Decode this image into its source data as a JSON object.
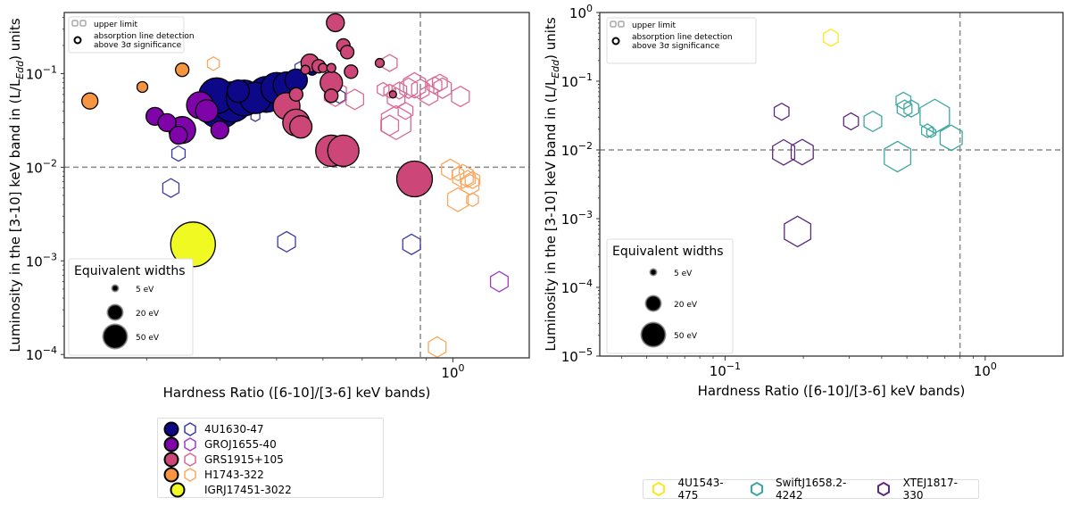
{
  "chart_data": [
    {
      "type": "scatter",
      "panel": "left",
      "xlabel": "Hardness Ratio ([6-10]/[3-6] keV bands)",
      "ylabel": "Luminosity in the [3-10] keV band in (L/L_Edd) units",
      "xscale": "log",
      "yscale": "log",
      "xlim": [
        0.217,
        1.35
      ],
      "ylim": [
        9.2e-05,
        0.45
      ],
      "x_ticks": [
        {
          "value": 1,
          "label": "10^0"
        }
      ],
      "y_ticks": [
        {
          "value": 0.1,
          "label": "10^-1"
        },
        {
          "value": 0.01,
          "label": "10^-2"
        },
        {
          "value": 0.001,
          "label": "10^-3"
        },
        {
          "value": 0.0001,
          "label": "10^-4"
        }
      ],
      "reference_lines": {
        "hardness": 0.88,
        "luminosity": 0.01
      },
      "marker_legend": {
        "upper_limit": "upper limit",
        "detection": "absorption line detection\n above 3σ significance"
      },
      "ew_legend": {
        "title": "Equivalent widths",
        "entries": [
          "5 eV",
          "20 eV",
          "50 eV"
        ]
      },
      "series": [
        {
          "name": "4U1630-47",
          "color": "#0d0887",
          "detections": [
            [
              0.395,
              0.058,
              40
            ],
            [
              0.42,
              0.05,
              45
            ],
            [
              0.44,
              0.055,
              40
            ],
            [
              0.4,
              0.045,
              50
            ],
            [
              0.46,
              0.055,
              35
            ],
            [
              0.48,
              0.06,
              40
            ],
            [
              0.5,
              0.07,
              35
            ],
            [
              0.52,
              0.075,
              30
            ],
            [
              0.54,
              0.085,
              25
            ],
            [
              0.43,
              0.065,
              25
            ],
            [
              0.575,
              0.11,
              12
            ]
          ],
          "upper_limits": [
            [
              0.55,
              0.115,
              8
            ],
            [
              0.64,
              0.057,
              8
            ],
            [
              0.46,
              0.035,
              6
            ],
            [
              0.34,
              0.014,
              9
            ],
            [
              0.33,
              0.006,
              11
            ],
            [
              0.52,
              0.0016,
              12
            ],
            [
              0.85,
              0.0015,
              12
            ]
          ]
        },
        {
          "name": "GROJ1655-40",
          "color": "#7e03a8",
          "detections": [
            [
              0.31,
              0.035,
              20
            ],
            [
              0.325,
              0.03,
              20
            ],
            [
              0.345,
              0.025,
              30
            ],
            [
              0.34,
              0.022,
              20
            ],
            [
              0.37,
              0.046,
              30
            ],
            [
              0.38,
              0.04,
              25
            ],
            [
              0.4,
              0.025,
              20
            ]
          ],
          "upper_limits": [
            [
              1.2,
              0.0006,
              12
            ]
          ]
        },
        {
          "name": "GRS1915+105",
          "color": "#cc4778",
          "detections": [
            [
              0.63,
              0.35,
              20
            ],
            [
              0.65,
              0.2,
              15
            ],
            [
              0.66,
              0.17,
              15
            ],
            [
              0.57,
              0.13,
              20
            ],
            [
              0.59,
              0.12,
              15
            ],
            [
              0.6,
              0.115,
              10
            ],
            [
              0.62,
              0.115,
              10
            ],
            [
              0.56,
              0.11,
              10
            ],
            [
              0.67,
              0.105,
              15
            ],
            [
              0.75,
              0.13,
              10
            ],
            [
              0.54,
              0.06,
              15
            ],
            [
              0.62,
              0.08,
              25
            ],
            [
              0.52,
              0.045,
              30
            ],
            [
              0.54,
              0.03,
              30
            ],
            [
              0.55,
              0.027,
              25
            ],
            [
              0.62,
              0.015,
              35
            ],
            [
              0.65,
              0.015,
              35
            ],
            [
              0.86,
              0.0075,
              40
            ],
            [
              0.62,
              0.058,
              15
            ],
            [
              0.79,
              0.06,
              8
            ]
          ],
          "upper_limits": [
            [
              0.63,
              0.061,
              15
            ],
            [
              0.68,
              0.053,
              12
            ],
            [
              0.78,
              0.13,
              10
            ],
            [
              0.76,
              0.068,
              8
            ],
            [
              0.78,
              0.065,
              8
            ],
            [
              0.81,
              0.066,
              10
            ],
            [
              0.84,
              0.07,
              12
            ],
            [
              0.86,
              0.075,
              15
            ],
            [
              0.88,
              0.068,
              12
            ],
            [
              0.91,
              0.059,
              12
            ],
            [
              0.8,
              0.055,
              12
            ],
            [
              0.83,
              0.04,
              10
            ],
            [
              0.78,
              0.028,
              12
            ],
            [
              0.8,
              0.03,
              20
            ],
            [
              0.95,
              0.08,
              10
            ],
            [
              0.96,
              0.07,
              12
            ],
            [
              0.93,
              0.075,
              10
            ],
            [
              1.03,
              0.057,
              12
            ]
          ]
        },
        {
          "name": "H1743-322",
          "color": "#f89540",
          "detections": [
            [
              0.24,
              0.051,
              18
            ],
            [
              0.295,
              0.072,
              12
            ],
            [
              0.345,
              0.11,
              15
            ]
          ],
          "upper_limits": [
            [
              0.39,
              0.128,
              8
            ],
            [
              0.99,
              0.0095,
              12
            ],
            [
              1.02,
              0.0085,
              8
            ],
            [
              1.04,
              0.008,
              14
            ],
            [
              1.06,
              0.0075,
              10
            ],
            [
              1.08,
              0.0073,
              10
            ],
            [
              1.07,
              0.0065,
              12
            ],
            [
              1.02,
              0.0045,
              14
            ],
            [
              1.08,
              0.0045,
              8
            ],
            [
              0.94,
              0.00012,
              12
            ]
          ]
        },
        {
          "name": "IGRJ17451-3022",
          "color": "#f0f921",
          "detections": [
            [
              0.36,
              0.0015,
              50
            ]
          ],
          "upper_limits": []
        }
      ],
      "legend": {
        "placement": "below",
        "entries": [
          "4U1630-47",
          "GROJ1655-40",
          "GRS1915+105",
          "H1743-322",
          "IGRJ17451-3022"
        ]
      }
    },
    {
      "type": "scatter",
      "panel": "right",
      "xlabel": "Hardness Ratio ([6-10]/[3-6] keV bands)",
      "ylabel": "Luminosity in the [3-10] keV band in (L/L_Edd) units",
      "xscale": "log",
      "yscale": "log",
      "xlim": [
        0.033,
        1.99
      ],
      "ylim": [
        1e-05,
        1
      ],
      "x_ticks": [
        {
          "value": 0.1,
          "label": "10^-1"
        },
        {
          "value": 1,
          "label": "10^0"
        }
      ],
      "y_ticks": [
        {
          "value": 1,
          "label": "10^0"
        },
        {
          "value": 0.1,
          "label": "10^-1"
        },
        {
          "value": 0.01,
          "label": "10^-2"
        },
        {
          "value": 0.001,
          "label": "10^-3"
        },
        {
          "value": 0.0001,
          "label": "10^-4"
        },
        {
          "value": 1e-05,
          "label": "10^-5"
        }
      ],
      "reference_lines": {
        "hardness": 0.8,
        "luminosity": 0.01
      },
      "marker_legend": {
        "upper_limit": "upper limit",
        "detection": "absorption line detection\n above 3σ significance"
      },
      "ew_legend": {
        "title": "Equivalent widths",
        "entries": [
          "5 eV",
          "20 eV",
          "50 eV"
        ]
      },
      "series": [
        {
          "name": "4U1543-475",
          "color": "#fde725",
          "upper_limits": [
            [
              0.255,
              0.43,
              10
            ]
          ]
        },
        {
          "name": "SwiftJ1658.2-4242",
          "color": "#3fa7a2",
          "upper_limits": [
            [
              0.37,
              0.026,
              12
            ],
            [
              0.485,
              0.052,
              10
            ],
            [
              0.49,
              0.04,
              10
            ],
            [
              0.52,
              0.04,
              10
            ],
            [
              0.46,
              0.008,
              18
            ],
            [
              0.64,
              0.031,
              20
            ],
            [
              0.6,
              0.019,
              8
            ],
            [
              0.62,
              0.018,
              6
            ],
            [
              0.74,
              0.015,
              15
            ]
          ]
        },
        {
          "name": "XTEJ1817-330",
          "color": "#5c2a7e",
          "upper_limits": [
            [
              0.165,
              0.036,
              10
            ],
            [
              0.168,
              0.0092,
              15
            ],
            [
              0.198,
              0.0093,
              15
            ],
            [
              0.305,
              0.026,
              10
            ],
            [
              0.19,
              0.00065,
              18
            ]
          ]
        }
      ],
      "legend": {
        "placement": "below",
        "entries": [
          "4U1543-475",
          "SwiftJ1658.2-4242",
          "XTEJ1817-330"
        ]
      }
    }
  ]
}
